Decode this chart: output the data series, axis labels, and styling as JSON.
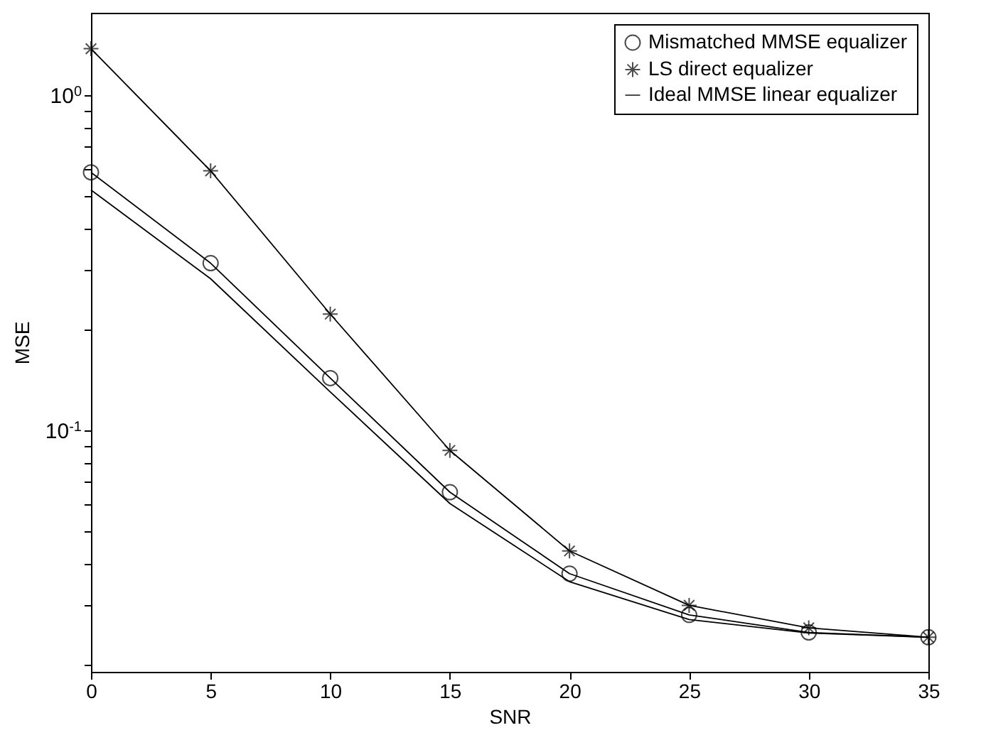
{
  "chart_data": {
    "type": "line",
    "xlabel": "SNR",
    "ylabel": "MSE",
    "log": true,
    "legend": "top right",
    "x": [
      0,
      5,
      10,
      15,
      20,
      25,
      30,
      35
    ],
    "xlim": [
      0,
      35
    ],
    "xticks": [
      0,
      5,
      10,
      15,
      20,
      25,
      30,
      35
    ],
    "ylim": [
      0.019,
      1.76
    ],
    "yticks": [
      {
        "value": 0.02,
        "label": null
      },
      {
        "value": 0.03,
        "label": null
      },
      {
        "value": 0.04,
        "label": null
      },
      {
        "value": 0.05,
        "label": null
      },
      {
        "value": 0.06,
        "label": null
      },
      {
        "value": 0.07,
        "label": null
      },
      {
        "value": 0.08,
        "label": null
      },
      {
        "value": 0.09,
        "label": null
      },
      {
        "value": 0.1,
        "label": "10$^{-1}$"
      },
      {
        "value": 0.2,
        "label": null
      },
      {
        "value": 0.3,
        "label": null
      },
      {
        "value": 0.4,
        "label": null
      },
      {
        "value": 0.5,
        "label": null
      },
      {
        "value": 0.6,
        "label": null
      },
      {
        "value": 0.7,
        "label": null
      },
      {
        "value": 0.8,
        "label": null
      },
      {
        "value": 0.9,
        "label": null
      },
      {
        "value": 1,
        "label": "10$^{0}$"
      }
    ],
    "series": [
      {
        "name": "Mismatched MMSE equalizer",
        "color": "#000000",
        "marker": "circle",
        "values": [
          0.588,
          0.315,
          0.143,
          0.0653,
          0.0373,
          0.0281,
          0.0249,
          0.0241
        ]
      },
      {
        "name": "LS direct equalizer",
        "color": "#000000",
        "marker": "cross",
        "values": [
          1.375,
          0.594,
          0.222,
          0.087,
          0.0436,
          0.03,
          0.0257,
          0.0241
        ]
      },
      {
        "name": "Ideal MMSE linear equalizer",
        "color": "#000000",
        "marker": "none",
        "values": [
          0.521,
          0.283,
          0.13,
          0.0604,
          0.0353,
          0.0272,
          0.0248,
          0.0241
        ]
      }
    ]
  }
}
